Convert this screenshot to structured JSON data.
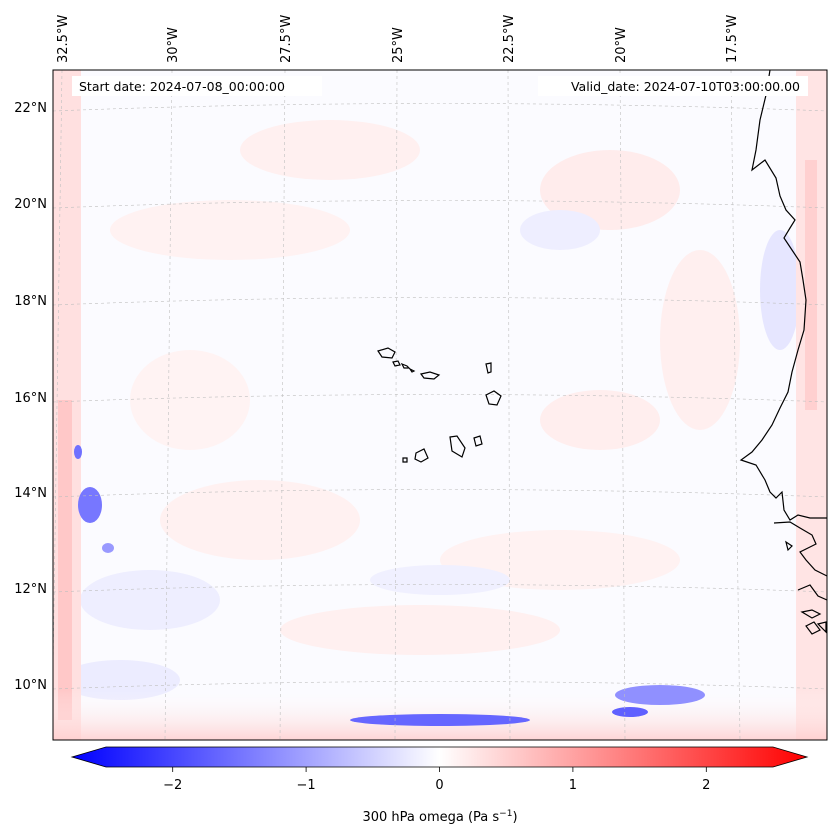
{
  "header": {
    "start_date": "Start date: 2024-07-08_00:00:00",
    "valid_date": "Valid_date: 2024-07-10T03:00:00.00"
  },
  "map": {
    "lon_labels": [
      "32.5°W",
      "30°W",
      "27.5°W",
      "25°W",
      "22.5°W",
      "20°W",
      "17.5°W"
    ],
    "lat_labels": [
      "22°N",
      "20°N",
      "18°N",
      "16°N",
      "14°N",
      "12°N",
      "10°N"
    ]
  },
  "colorbar": {
    "ticks": [
      "−2",
      "−1",
      "0",
      "1",
      "2"
    ],
    "tick_values": [
      -2,
      -1,
      0,
      1,
      2
    ],
    "vmin": -2.5,
    "vmax": 2.5,
    "label": "300 hPa omega (Pa s",
    "label_sup": "−1",
    "label_end": ")",
    "color_low": "#0000ff",
    "color_mid": "#ffffff",
    "color_high": "#ff0000"
  }
}
